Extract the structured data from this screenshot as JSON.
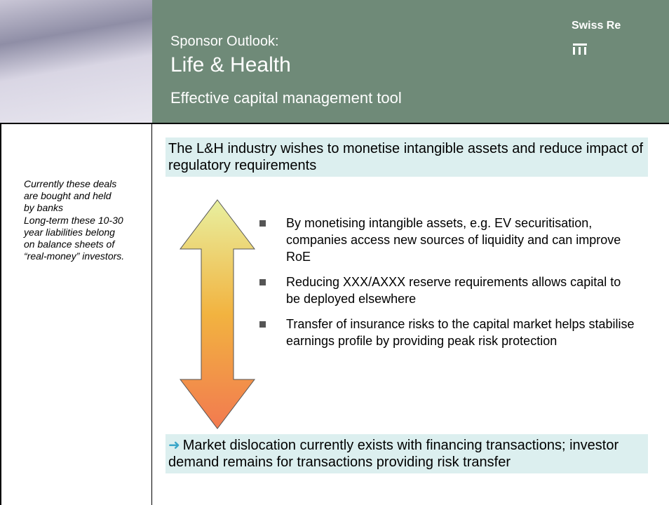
{
  "header": {
    "title_line1": "Sponsor Outlook:",
    "title_line2": "Life & Health",
    "subtitle": "Effective capital management tool",
    "brand": "Swiss Re"
  },
  "sidebar": {
    "notes": [
      "Currently these deals are bought and held by banks",
      "Long-term these 10-30 year liabilities belong on balance sheets of “real-money” investors."
    ]
  },
  "main": {
    "headline": "The L&H industry wishes to monetise intangible assets and reduce impact of regulatory requirements",
    "bullets": [
      "By monetising intangible assets, e.g. EV securitisation, companies access new sources of liquidity and can improve RoE",
      "Reducing XXX/AXXX reserve requirements allows capital to be deployed elsewhere",
      "Transfer of insurance risks to the capital market helps stabilise earnings profile by providing peak risk protection"
    ],
    "conclusion": "Market dislocation currently exists with financing transactions; investor demand remains for transactions providing risk transfer"
  }
}
